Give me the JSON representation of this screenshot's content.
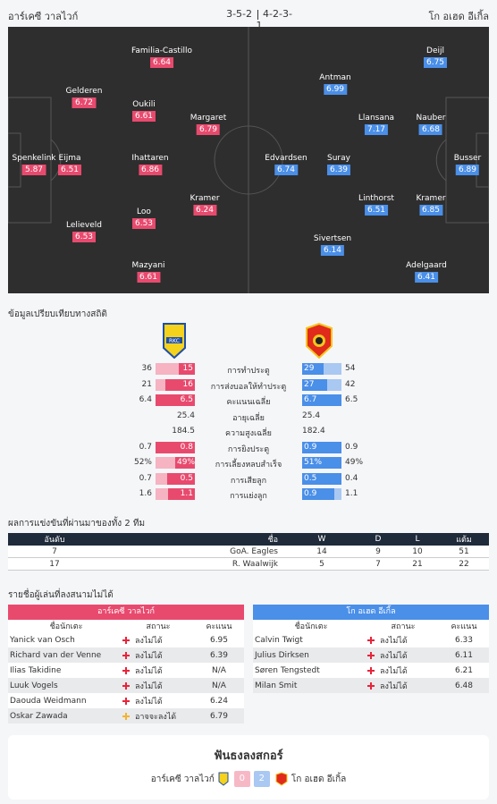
{
  "header": {
    "home_team": "อาร์เคซี วาลไวก์",
    "away_team": "โก อเฮด อีเกิ้ล",
    "home_formation": "3-5-2",
    "away_formation": "4-2-3-1"
  },
  "home_players": [
    {
      "name": "Spenkelink",
      "rating": "5.87"
    },
    {
      "name": "Eijma",
      "rating": "6.51"
    },
    {
      "name": "Gelderen",
      "rating": "6.72"
    },
    {
      "name": "Lelieveld",
      "rating": "6.53"
    },
    {
      "name": "Familia-Castillo",
      "rating": "6.64"
    },
    {
      "name": "Oukili",
      "rating": "6.61"
    },
    {
      "name": "Ihattaren",
      "rating": "6.86"
    },
    {
      "name": "Loo",
      "rating": "6.53"
    },
    {
      "name": "Mazyani",
      "rating": "6.61"
    },
    {
      "name": "Margaret",
      "rating": "6.79"
    },
    {
      "name": "Kramer",
      "rating": "6.24"
    }
  ],
  "away_players": [
    {
      "name": "Busser",
      "rating": "6.89"
    },
    {
      "name": "Deijl",
      "rating": "6.75"
    },
    {
      "name": "Nauber",
      "rating": "6.68"
    },
    {
      "name": "Kramer",
      "rating": "6.85"
    },
    {
      "name": "Adelgaard",
      "rating": "6.41"
    },
    {
      "name": "Llansana",
      "rating": "7.17"
    },
    {
      "name": "Linthorst",
      "rating": "6.51"
    },
    {
      "name": "Antman",
      "rating": "6.99"
    },
    {
      "name": "Suray",
      "rating": "6.39"
    },
    {
      "name": "Sivertsen",
      "rating": "6.14"
    },
    {
      "name": "Edvardsen",
      "rating": "6.74"
    }
  ],
  "stats_title": "ข้อมูลเปรียบเทียบทางสถิติ",
  "stats": [
    {
      "label": "การทำประตู",
      "home_total": "36",
      "home": "15",
      "away": "29",
      "away_total": "54",
      "hf": 0.42,
      "af": 0.54
    },
    {
      "label": "การส่งบอลให้ทำประตู",
      "home_total": "21",
      "home": "16",
      "away": "27",
      "away_total": "42",
      "hf": 0.76,
      "af": 0.64
    },
    {
      "label": "คะแนนเฉลี่ย",
      "home_total": "6.4",
      "home": "6.5",
      "away": "6.7",
      "away_total": "6.5",
      "hf": 1.0,
      "af": 1.0
    },
    {
      "label": "อายุเฉลี่ย",
      "home_total": "",
      "home": "25.4",
      "away": "25.4",
      "away_total": "",
      "hf": 0,
      "af": 0
    },
    {
      "label": "ความสูงเฉลี่ย",
      "home_total": "",
      "home": "184.5",
      "away": "182.4",
      "away_total": "",
      "hf": 0,
      "af": 0
    },
    {
      "label": "การยิงประตู",
      "home_total": "0.7",
      "home": "0.8",
      "away": "0.9",
      "away_total": "0.9",
      "hf": 1.0,
      "af": 1.0
    },
    {
      "label": "การเลี้ยงหลบสำเร็จ",
      "home_total": "52%",
      "home": "49%",
      "away": "51%",
      "away_total": "49%",
      "hf": 0.49,
      "af": 1.0
    },
    {
      "label": "การเสียลูก",
      "home_total": "0.7",
      "home": "0.5",
      "away": "0.5",
      "away_total": "0.4",
      "hf": 0.71,
      "af": 1.0
    },
    {
      "label": "การแย่งลูก",
      "home_total": "1.6",
      "home": "1.1",
      "away": "0.9",
      "away_total": "1.1",
      "hf": 0.69,
      "af": 0.82
    }
  ],
  "past_title": "ผลการแข่งขันที่ผ่านมาของทั้ง 2 ทีม",
  "past_headers": [
    "อันดับ",
    "ชื่อ",
    "W",
    "D",
    "L",
    "แต้ม"
  ],
  "past_rows": [
    [
      "7",
      "GoA. Eagles",
      "14",
      "9",
      "10",
      "51"
    ],
    [
      "17",
      "R. Waalwijk",
      "5",
      "7",
      "21",
      "22"
    ]
  ],
  "missing_title": "รายชื่อผู้เล่นที่ลงสนามไม่ได้",
  "missing_headers": [
    "ชื่อนักเตะ",
    "สถานะ",
    "คะแนน"
  ],
  "home_missing": [
    {
      "name": "Yanick van Osch",
      "status": "ลงไม่ได้",
      "score": "6.95",
      "icon": "red"
    },
    {
      "name": "Richard van der Venne",
      "status": "ลงไม่ได้",
      "score": "6.39",
      "icon": "red"
    },
    {
      "name": "Ilias Takidine",
      "status": "ลงไม่ได้",
      "score": "N/A",
      "icon": "red"
    },
    {
      "name": "Luuk Vogels",
      "status": "ลงไม่ได้",
      "score": "N/A",
      "icon": "red"
    },
    {
      "name": "Daouda Weidmann",
      "status": "ลงไม่ได้",
      "score": "6.24",
      "icon": "red"
    },
    {
      "name": "Oskar Zawada",
      "status": "อาจจะลงได้",
      "score": "6.79",
      "icon": "yellow"
    }
  ],
  "away_missing": [
    {
      "name": "Calvin Twigt",
      "status": "ลงไม่ได้",
      "score": "6.33",
      "icon": "red"
    },
    {
      "name": "Julius Dirksen",
      "status": "ลงไม่ได้",
      "score": "6.11",
      "icon": "red"
    },
    {
      "name": "Søren Tengstedt",
      "status": "ลงไม่ได้",
      "score": "6.21",
      "icon": "red"
    },
    {
      "name": "Milan Smit",
      "status": "ลงไม่ได้",
      "score": "6.48",
      "icon": "red"
    }
  ],
  "fan": {
    "title": "ฟันธงลงสกอร์",
    "home_score": "0",
    "away_score": "2"
  },
  "colors": {
    "home": "#e84a6e",
    "away": "#4a8fe8",
    "pitch": "#2e2e2e"
  }
}
